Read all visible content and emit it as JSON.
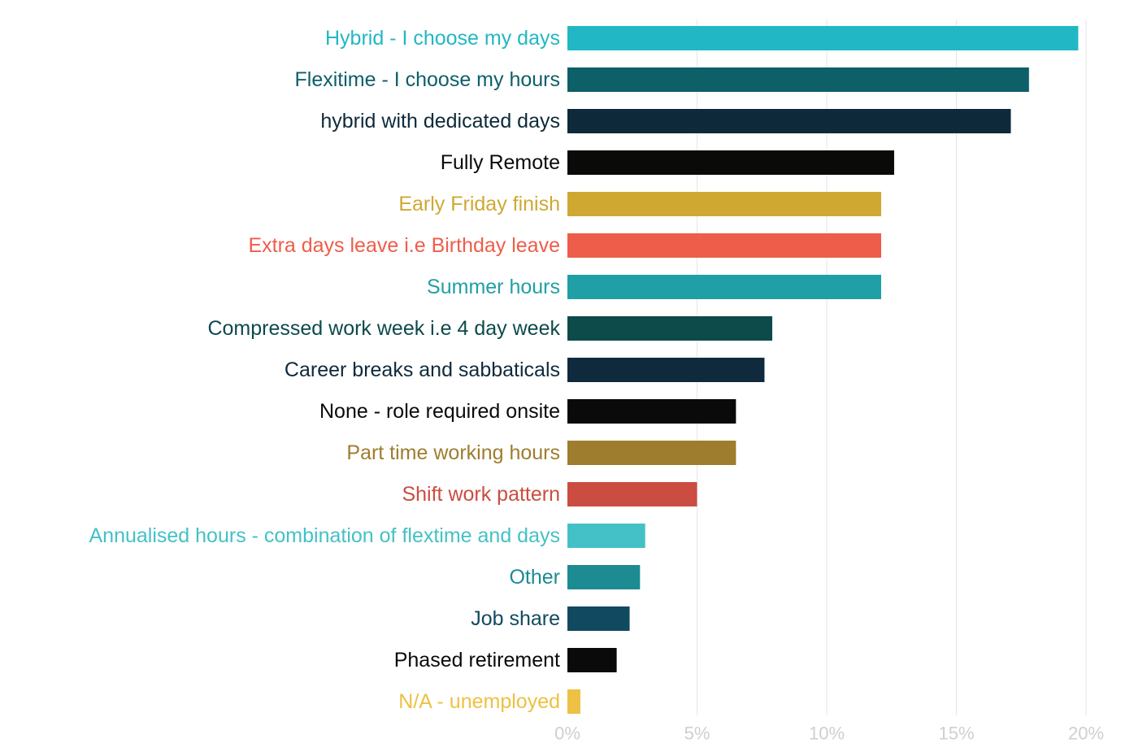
{
  "chart_data": {
    "type": "bar",
    "orientation": "horizontal",
    "title": "",
    "xlabel": "",
    "ylabel": "",
    "xlim": [
      0,
      20
    ],
    "x_ticks": [
      0,
      5,
      10,
      15,
      20
    ],
    "x_tick_labels": [
      "0%",
      "5%",
      "10%",
      "15%",
      "20%"
    ],
    "grid": "vertical",
    "legend": "none",
    "categories": [
      "Hybrid - I choose my days",
      "Flexitime - I choose my hours",
      "hybrid with dedicated days",
      "Fully Remote",
      "Early Friday finish",
      "Extra days leave i.e Birthday leave",
      "Summer hours",
      "Compressed work week i.e 4 day week",
      "Career breaks and sabbaticals",
      "None - role required onsite",
      "Part time working hours",
      "Shift work pattern",
      "Annualised hours - combination of flextime and days",
      "Other",
      "Job share",
      "Phased retirement",
      "N/A - unemployed"
    ],
    "values": [
      19.7,
      17.8,
      17.1,
      12.6,
      12.1,
      12.1,
      12.1,
      7.9,
      7.6,
      6.5,
      6.5,
      5.0,
      3.0,
      2.8,
      2.4,
      1.9,
      0.5
    ],
    "colors": [
      "#22B7C4",
      "#0D5F68",
      "#0E2A3A",
      "#0A0A08",
      "#CFA832",
      "#EE5D4A",
      "#219FA6",
      "#0D4A4A",
      "#0F2A3C",
      "#0A0A0A",
      "#9E7D2E",
      "#CB4D41",
      "#44C1C6",
      "#1C8B92",
      "#114A60",
      "#0A0A0A",
      "#EDC143"
    ],
    "grid_color": "#E6E6E6",
    "tick_label_color": "#CFCFCF"
  }
}
